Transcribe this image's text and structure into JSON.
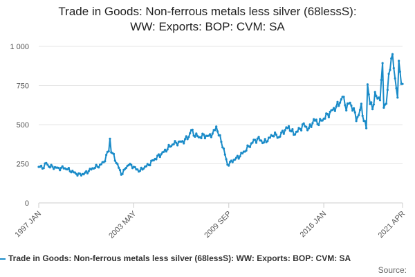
{
  "chart_data": {
    "type": "line",
    "title_line1": "Trade in Goods: Non-ferrous metals less silver (68lessS):",
    "title_line2": "WW: Exports: BOP: CVM: SA",
    "xlabel": "",
    "ylabel": "",
    "ylim": [
      0,
      1000
    ],
    "yticks": [
      0,
      250,
      500,
      750,
      1000
    ],
    "ytick_labels": [
      "0",
      "250",
      "500",
      "750",
      "1 000"
    ],
    "xticks": [
      {
        "label": "1997 JAN",
        "index": 0
      },
      {
        "label": "2003 MAY",
        "index": 76
      },
      {
        "label": "2009 SEP",
        "index": 152
      },
      {
        "label": "2016 JAN",
        "index": 228
      },
      {
        "label": "2021 APR",
        "index": 291
      }
    ],
    "grid": true,
    "color": "#1a8bc8",
    "series_name": "Trade in Goods: Non-ferrous metals less silver (68lessS): WW: Exports: BOP: CVM: SA",
    "x_start": "1997 JAN",
    "frequency": "monthly",
    "anchors": [
      [
        0,
        230
      ],
      [
        4,
        228
      ],
      [
        6,
        255
      ],
      [
        8,
        235
      ],
      [
        12,
        228
      ],
      [
        16,
        220
      ],
      [
        20,
        225
      ],
      [
        24,
        212
      ],
      [
        28,
        195
      ],
      [
        32,
        180
      ],
      [
        36,
        185
      ],
      [
        40,
        205
      ],
      [
        44,
        225
      ],
      [
        48,
        235
      ],
      [
        52,
        260
      ],
      [
        54,
        300
      ],
      [
        56,
        335
      ],
      [
        57,
        410
      ],
      [
        58,
        330
      ],
      [
        60,
        300
      ],
      [
        62,
        260
      ],
      [
        64,
        225
      ],
      [
        66,
        185
      ],
      [
        68,
        200
      ],
      [
        70,
        230
      ],
      [
        72,
        245
      ],
      [
        75,
        235
      ],
      [
        78,
        215
      ],
      [
        81,
        205
      ],
      [
        84,
        225
      ],
      [
        88,
        245
      ],
      [
        92,
        275
      ],
      [
        96,
        300
      ],
      [
        100,
        325
      ],
      [
        104,
        355
      ],
      [
        108,
        380
      ],
      [
        112,
        385
      ],
      [
        116,
        395
      ],
      [
        120,
        425
      ],
      [
        122,
        465
      ],
      [
        124,
        440
      ],
      [
        128,
        420
      ],
      [
        132,
        430
      ],
      [
        136,
        425
      ],
      [
        140,
        450
      ],
      [
        142,
        490
      ],
      [
        144,
        435
      ],
      [
        146,
        395
      ],
      [
        148,
        340
      ],
      [
        150,
        275
      ],
      [
        151,
        245
      ],
      [
        153,
        255
      ],
      [
        156,
        275
      ],
      [
        160,
        295
      ],
      [
        164,
        325
      ],
      [
        168,
        360
      ],
      [
        172,
        395
      ],
      [
        176,
        410
      ],
      [
        180,
        385
      ],
      [
        184,
        410
      ],
      [
        188,
        440
      ],
      [
        192,
        420
      ],
      [
        196,
        460
      ],
      [
        200,
        485
      ],
      [
        204,
        440
      ],
      [
        208,
        465
      ],
      [
        212,
        500
      ],
      [
        216,
        470
      ],
      [
        220,
        530
      ],
      [
        224,
        510
      ],
      [
        228,
        540
      ],
      [
        232,
        570
      ],
      [
        236,
        600
      ],
      [
        240,
        630
      ],
      [
        243,
        680
      ],
      [
        246,
        610
      ],
      [
        249,
        640
      ],
      [
        252,
        590
      ],
      [
        254,
        540
      ],
      [
        256,
        560
      ],
      [
        258,
        620
      ],
      [
        260,
        530
      ],
      [
        262,
        480
      ],
      [
        263,
        760
      ],
      [
        265,
        640
      ],
      [
        267,
        600
      ],
      [
        269,
        700
      ],
      [
        271,
        660
      ],
      [
        273,
        680
      ],
      [
        275,
        870
      ],
      [
        276,
        620
      ],
      [
        278,
        640
      ],
      [
        280,
        800
      ],
      [
        282,
        940
      ],
      [
        283,
        930
      ],
      [
        285,
        790
      ],
      [
        287,
        690
      ],
      [
        288,
        880
      ],
      [
        290,
        780
      ],
      [
        291,
        760
      ]
    ]
  },
  "legend": {
    "label": "Trade in Goods: Non-ferrous metals less silver (68lessS): WW: Exports: BOP: CVM: SA"
  },
  "source": {
    "label": "Source:"
  }
}
